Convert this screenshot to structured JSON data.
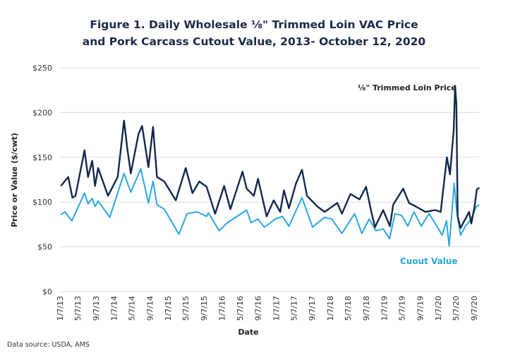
{
  "chart_data": {
    "type": "line",
    "title": "Figure 1. Daily Wholesale ⅛\" Trimmed Loin VAC Price",
    "subtitle": "and Pork Carcass Cutout Value, 2013- October 12, 2020",
    "xlabel": "Date",
    "ylabel": "Price or Value ($/cwt)",
    "ylim": [
      0,
      250
    ],
    "y_ticks": [
      "$0",
      "$50",
      "$100",
      "$150",
      "$200",
      "$250"
    ],
    "y_tick_values": [
      0,
      50,
      100,
      150,
      200,
      250
    ],
    "x_ticks": [
      "1/7/13",
      "5/7/13",
      "9/7/13",
      "1/7/14",
      "5/7/14",
      "9/7/14",
      "1/7/15",
      "5/7/15",
      "9/7/15",
      "1/7/16",
      "5/7/16",
      "9/7/16",
      "1/7/17",
      "5/7/17",
      "9/7/17",
      "1/7/18",
      "5/7/18",
      "9/7/18",
      "1/7/19",
      "5/7/19",
      "9/7/19",
      "1/7/20",
      "5/7/20",
      "9/7/20"
    ],
    "grid": "horizontal",
    "source": "Data source: USDA, AMS",
    "series": [
      {
        "name": "⅛\" Trimmed Loin Price",
        "color": "#13294b",
        "points": [
          [
            "1/13/13",
            118
          ],
          [
            "3/4/13",
            128
          ],
          [
            "4/1/13",
            105
          ],
          [
            "4/22/13",
            107
          ],
          [
            "6/22/13",
            158
          ],
          [
            "7/16/13",
            128
          ],
          [
            "8/13/13",
            146
          ],
          [
            "9/1/13",
            118
          ],
          [
            "9/22/13",
            138
          ],
          [
            "11/28/13",
            107
          ],
          [
            "2/1/14",
            128
          ],
          [
            "3/16/14",
            191
          ],
          [
            "4/7/14",
            160
          ],
          [
            "5/1/14",
            132
          ],
          [
            "6/22/14",
            176
          ],
          [
            "7/16/14",
            185
          ],
          [
            "8/28/14",
            139
          ],
          [
            "9/28/14",
            184
          ],
          [
            "10/25/14",
            128
          ],
          [
            "12/13/14",
            123
          ],
          [
            "3/1/15",
            102
          ],
          [
            "5/7/15",
            138
          ],
          [
            "6/22/15",
            110
          ],
          [
            "8/7/15",
            123
          ],
          [
            "9/25/15",
            117
          ],
          [
            "11/22/15",
            87
          ],
          [
            "1/22/16",
            118
          ],
          [
            "3/4/16",
            92
          ],
          [
            "5/25/16",
            134
          ],
          [
            "6/22/16",
            115
          ],
          [
            "8/10/16",
            107
          ],
          [
            "9/7/16",
            126
          ],
          [
            "11/4/16",
            84
          ],
          [
            "12/22/16",
            102
          ],
          [
            "2/4/17",
            89
          ],
          [
            "3/1/17",
            113
          ],
          [
            "4/4/17",
            93
          ],
          [
            "5/22/17",
            121
          ],
          [
            "7/1/17",
            136
          ],
          [
            "8/4/17",
            107
          ],
          [
            "10/13/17",
            95
          ],
          [
            "12/1/17",
            89
          ],
          [
            "2/25/18",
            99
          ],
          [
            "3/28/18",
            87
          ],
          [
            "5/25/18",
            109
          ],
          [
            "7/25/18",
            103
          ],
          [
            "9/7/18",
            117
          ],
          [
            "10/16/18",
            87
          ],
          [
            "11/7/18",
            72
          ],
          [
            "1/1/19",
            91
          ],
          [
            "2/16/19",
            73
          ],
          [
            "3/10/19",
            97
          ],
          [
            "5/16/19",
            115
          ],
          [
            "6/25/19",
            99
          ],
          [
            "8/10/19",
            95
          ],
          [
            "10/13/19",
            89
          ],
          [
            "12/19/19",
            91
          ],
          [
            "1/25/20",
            89
          ],
          [
            "3/7/20",
            150
          ],
          [
            "3/28/20",
            131
          ],
          [
            "4/22/20",
            181
          ],
          [
            "5/1/20",
            230
          ],
          [
            "5/10/20",
            210
          ],
          [
            "5/19/20",
            84
          ],
          [
            "6/7/20",
            71
          ],
          [
            "8/4/20",
            89
          ],
          [
            "8/19/20",
            76
          ],
          [
            "9/10/20",
            95
          ],
          [
            "9/25/20",
            114
          ],
          [
            "10/12/20",
            116
          ]
        ]
      },
      {
        "name": "Cuout Value",
        "color": "#2aa7de",
        "points": [
          [
            "1/13/13",
            86
          ],
          [
            "2/10/13",
            89
          ],
          [
            "3/28/13",
            79
          ],
          [
            "6/22/13",
            110
          ],
          [
            "7/16/13",
            98
          ],
          [
            "8/13/13",
            104
          ],
          [
            "9/1/13",
            95
          ],
          [
            "9/22/13",
            101
          ],
          [
            "12/10/13",
            83
          ],
          [
            "3/16/14",
            132
          ],
          [
            "5/1/14",
            111
          ],
          [
            "7/7/14",
            137
          ],
          [
            "8/28/14",
            99
          ],
          [
            "9/28/14",
            123
          ],
          [
            "10/25/14",
            97
          ],
          [
            "12/13/14",
            92
          ],
          [
            "3/22/15",
            64
          ],
          [
            "5/16/15",
            87
          ],
          [
            "7/25/15",
            89
          ],
          [
            "9/25/15",
            84
          ],
          [
            "10/7/15",
            88
          ],
          [
            "12/19/15",
            68
          ],
          [
            "2/13/16",
            77
          ],
          [
            "6/22/16",
            91
          ],
          [
            "7/22/16",
            77
          ],
          [
            "9/7/16",
            81
          ],
          [
            "10/19/16",
            72
          ],
          [
            "11/7/16",
            74
          ],
          [
            "1/1/17",
            81
          ],
          [
            "2/19/17",
            84
          ],
          [
            "4/4/17",
            73
          ],
          [
            "7/1/17",
            105
          ],
          [
            "9/10/17",
            72
          ],
          [
            "12/1/17",
            83
          ],
          [
            "1/19/18",
            81
          ],
          [
            "3/28/18",
            65
          ],
          [
            "6/22/18",
            87
          ],
          [
            "8/10/18",
            65
          ],
          [
            "9/28/18",
            81
          ],
          [
            "11/13/18",
            68
          ],
          [
            "1/1/19",
            70
          ],
          [
            "2/13/19",
            59
          ],
          [
            "3/22/19",
            87
          ],
          [
            "5/7/19",
            85
          ],
          [
            "6/16/19",
            73
          ],
          [
            "7/28/19",
            89
          ],
          [
            "9/16/19",
            73
          ],
          [
            "11/7/19",
            87
          ],
          [
            "12/19/19",
            76
          ],
          [
            "2/4/20",
            63
          ],
          [
            "3/4/20",
            79
          ],
          [
            "3/22/20",
            51
          ],
          [
            "4/10/20",
            89
          ],
          [
            "4/25/20",
            121
          ],
          [
            "5/13/20",
            89
          ],
          [
            "6/7/20",
            63
          ],
          [
            "7/10/20",
            73
          ],
          [
            "8/19/20",
            81
          ],
          [
            "9/22/20",
            95
          ],
          [
            "10/12/20",
            97
          ]
        ]
      }
    ]
  }
}
